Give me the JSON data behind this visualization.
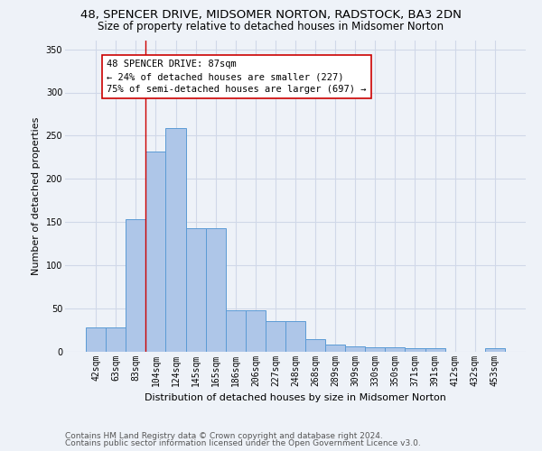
{
  "title_line1": "48, SPENCER DRIVE, MIDSOMER NORTON, RADSTOCK, BA3 2DN",
  "title_line2": "Size of property relative to detached houses in Midsomer Norton",
  "xlabel": "Distribution of detached houses by size in Midsomer Norton",
  "ylabel": "Number of detached properties",
  "footer_line1": "Contains HM Land Registry data © Crown copyright and database right 2024.",
  "footer_line2": "Contains public sector information licensed under the Open Government Licence v3.0.",
  "categories": [
    "42sqm",
    "63sqm",
    "83sqm",
    "104sqm",
    "124sqm",
    "145sqm",
    "165sqm",
    "186sqm",
    "206sqm",
    "227sqm",
    "248sqm",
    "268sqm",
    "289sqm",
    "309sqm",
    "330sqm",
    "350sqm",
    "371sqm",
    "391sqm",
    "412sqm",
    "432sqm",
    "453sqm"
  ],
  "values": [
    28,
    28,
    153,
    232,
    259,
    143,
    143,
    48,
    48,
    36,
    36,
    15,
    8,
    6,
    5,
    5,
    4,
    4,
    0,
    0,
    4
  ],
  "bar_color": "#aec6e8",
  "bar_edge_color": "#5b9bd5",
  "grid_color": "#d0d8e8",
  "bg_color": "#eef2f8",
  "property_line_x": 2.5,
  "annotation_text_line1": "48 SPENCER DRIVE: 87sqm",
  "annotation_text_line2": "← 24% of detached houses are smaller (227)",
  "annotation_text_line3": "75% of semi-detached houses are larger (697) →",
  "annotation_box_color": "#ffffff",
  "annotation_border_color": "#cc0000",
  "vline_color": "#cc0000",
  "ylim": [
    0,
    360
  ],
  "yticks": [
    0,
    50,
    100,
    150,
    200,
    250,
    300,
    350
  ],
  "title_fontsize": 9.5,
  "subtitle_fontsize": 8.5,
  "axis_label_fontsize": 8,
  "tick_fontsize": 7,
  "annotation_fontsize": 7.5,
  "footer_fontsize": 6.5
}
